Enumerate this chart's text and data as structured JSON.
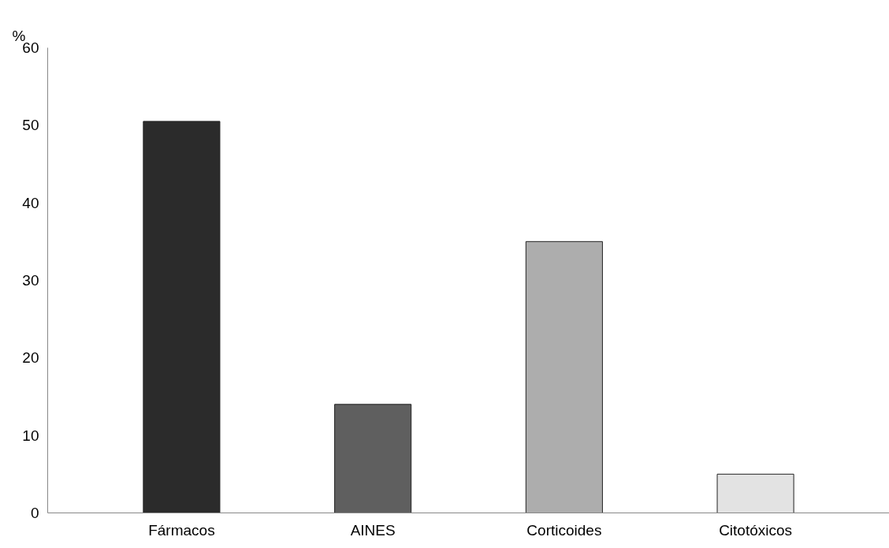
{
  "chart_data": {
    "type": "bar",
    "ylabel": "%",
    "categories": [
      "Fármacos",
      "AINES",
      "Corticoides",
      "Citotóxicos"
    ],
    "values": [
      50.5,
      14,
      35,
      5
    ],
    "colors": [
      "#2b2b2b",
      "#5f5f5f",
      "#adadad",
      "#e3e3e3"
    ],
    "ylim": [
      0,
      60
    ],
    "yticks": [
      0,
      10,
      20,
      30,
      40,
      50,
      60
    ],
    "grid": false
  }
}
